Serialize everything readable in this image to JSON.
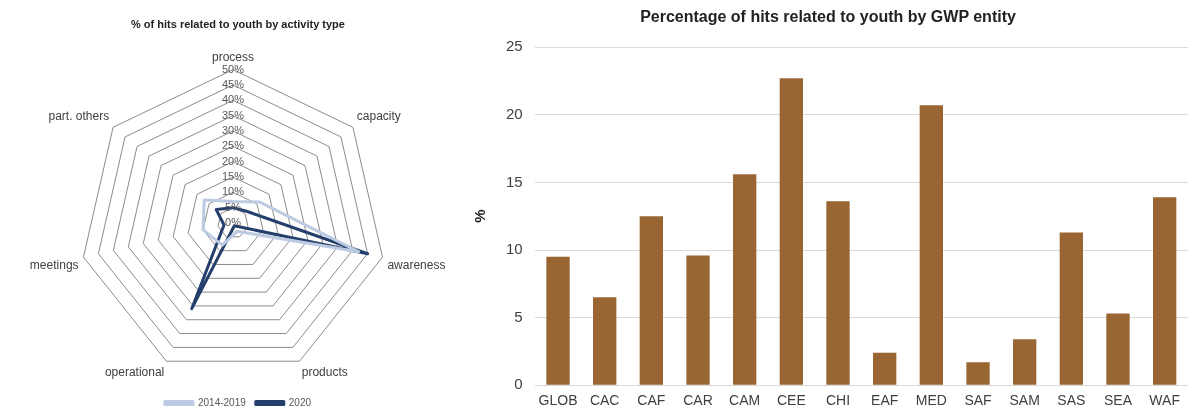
{
  "chart_data": [
    {
      "type": "radar",
      "title": "% of hits related to youth by activity type",
      "categories": [
        "process",
        "capacity",
        "awareness",
        "products",
        "operational",
        "meetings",
        "part. others"
      ],
      "ylim": [
        0,
        50
      ],
      "yticks": [
        {
          "value": 0,
          "label": "0%"
        },
        {
          "value": 5,
          "label": "5%"
        },
        {
          "value": 10,
          "label": "10%"
        },
        {
          "value": 15,
          "label": "15%"
        },
        {
          "value": 20,
          "label": "20%"
        },
        {
          "value": 25,
          "label": "25%"
        },
        {
          "value": 30,
          "label": "30%"
        },
        {
          "value": 35,
          "label": "35%"
        },
        {
          "value": 40,
          "label": "40%"
        },
        {
          "value": 45,
          "label": "45%"
        },
        {
          "value": 50,
          "label": "50%"
        }
      ],
      "legend": "bottom",
      "grid": true,
      "marker": "none",
      "series": [
        {
          "name": "2014-2019",
          "color": "#bccbe2",
          "values": [
            7,
            11,
            42,
            3,
            8,
            10,
            12
          ]
        },
        {
          "name": "2020",
          "color": "#243f6c",
          "values": [
            5,
            6,
            45,
            1,
            31,
            3,
            7
          ]
        }
      ]
    },
    {
      "type": "bar",
      "title": "Percentage of hits related to youth by GWP entity",
      "ylabel": "%",
      "categories": [
        "GLOB",
        "CAC",
        "CAF",
        "CAR",
        "CAM",
        "CEE",
        "CHI",
        "EAF",
        "MED",
        "SAF",
        "SAM",
        "SAS",
        "SEA",
        "WAF"
      ],
      "values": [
        9.5,
        6.5,
        12.5,
        9.6,
        15.6,
        22.7,
        13.6,
        2.4,
        20.7,
        1.7,
        3.4,
        11.3,
        5.3,
        13.9
      ],
      "color": "#996633",
      "ylim": [
        0,
        25
      ],
      "yticks": [
        0,
        5,
        10,
        15,
        20,
        25
      ],
      "grid": "y"
    }
  ]
}
